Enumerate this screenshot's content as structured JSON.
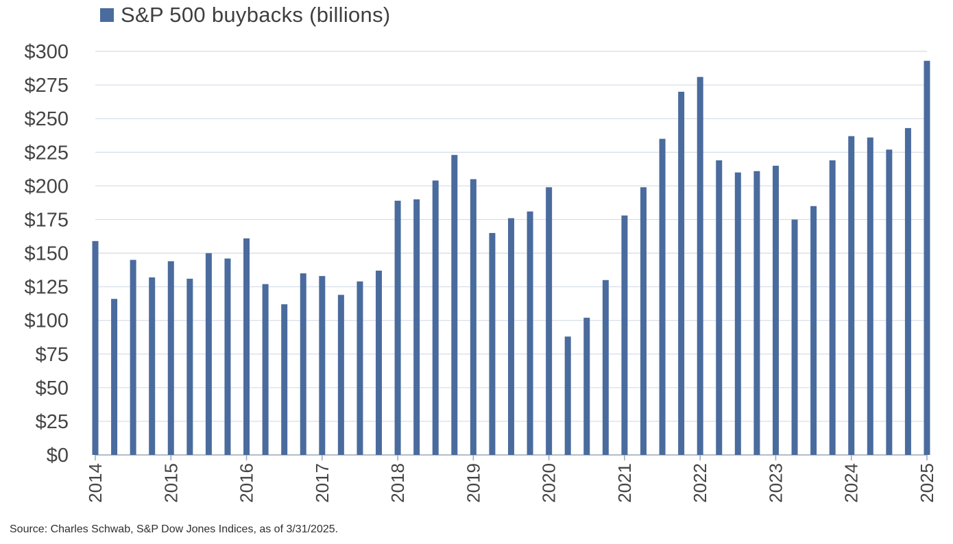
{
  "chart_data": {
    "type": "bar",
    "title": "",
    "legend": {
      "label": "S&P 500 buybacks (billions)",
      "position": "top-left"
    },
    "series": [
      {
        "name": "S&P 500 buybacks (billions)",
        "values": [
          159,
          116,
          145,
          132,
          144,
          131,
          150,
          146,
          161,
          127,
          112,
          135,
          133,
          119,
          129,
          137,
          189,
          190,
          204,
          223,
          205,
          165,
          176,
          181,
          199,
          88,
          102,
          130,
          178,
          199,
          235,
          270,
          281,
          219,
          210,
          211,
          215,
          175,
          185,
          219,
          237,
          236,
          227,
          243,
          293
        ]
      }
    ],
    "x_tick_labels": [
      "2014",
      "2015",
      "2016",
      "2017",
      "2018",
      "2019",
      "2020",
      "2021",
      "2022",
      "2023",
      "2024",
      "2025"
    ],
    "y_tick_labels": [
      "$0",
      "$25",
      "$50",
      "$75",
      "$100",
      "$125",
      "$150",
      "$175",
      "$200",
      "$225",
      "$250",
      "$275",
      "$300"
    ],
    "ylim": [
      0,
      300
    ],
    "ytick_step": 25,
    "grid": true,
    "xlabel": "",
    "ylabel": "",
    "bar_color": "#4a6b9d"
  },
  "footer": {
    "source": "Source: Charles Schwab, S&P Dow Jones Indices, as of 3/31/2025."
  }
}
